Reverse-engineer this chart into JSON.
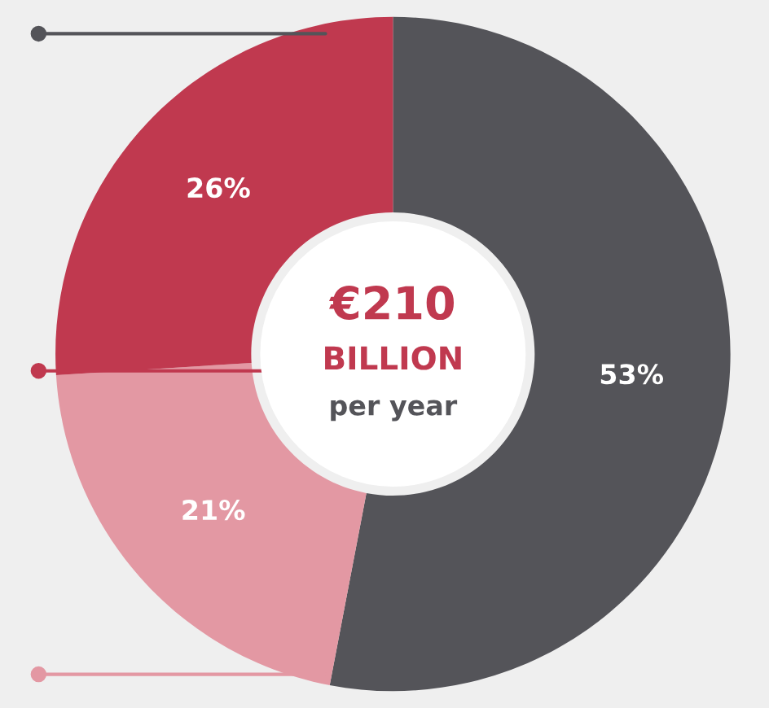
{
  "chart_data": {
    "type": "donut",
    "categories": [
      null,
      null,
      null
    ],
    "values": [
      53,
      21,
      26
    ],
    "colors": [
      "#545459",
      "#e398a3",
      "#c0394f"
    ],
    "value_labels": [
      "53%",
      "21%",
      "26%"
    ],
    "annotations": [
      "€210",
      "BILLION",
      "per year"
    ],
    "legend": false
  }
}
